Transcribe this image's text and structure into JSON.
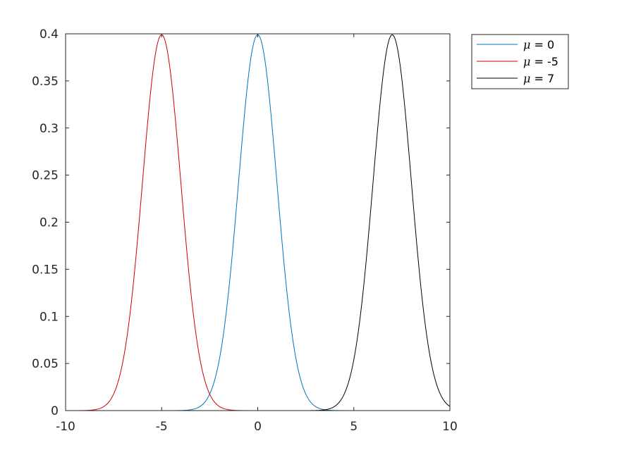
{
  "chart_data": {
    "type": "line",
    "title": "",
    "xlabel": "",
    "ylabel": "",
    "xlim": [
      -10,
      10
    ],
    "ylim": [
      0,
      0.4
    ],
    "xticks": [
      -10,
      -5,
      0,
      5,
      10
    ],
    "xtick_labels": [
      "-10",
      "-5",
      "0",
      "5",
      "10"
    ],
    "yticks": [
      0,
      0.05,
      0.1,
      0.15,
      0.2,
      0.25,
      0.3,
      0.35,
      0.4
    ],
    "ytick_labels": [
      "0",
      "0.05",
      "0.1",
      "0.15",
      "0.2",
      "0.25",
      "0.3",
      "0.35",
      "0.4"
    ],
    "grid": false,
    "box": true,
    "legend_position": "outside-top-right",
    "x": [
      -10,
      -9,
      -8.5,
      -8,
      -7.5,
      -7,
      -6.5,
      -6,
      -5.5,
      -5,
      -4.5,
      -4,
      -3.5,
      -3,
      -2.5,
      -2,
      -1.5,
      -1,
      -0.5,
      0,
      0.5,
      1,
      1.5,
      2,
      2.5,
      3,
      3.5,
      4,
      4.5,
      5,
      5.5,
      6,
      6.5,
      7,
      7.5,
      8,
      8.5,
      9,
      9.5,
      10
    ],
    "series": [
      {
        "name_prefix": "μ",
        "name_suffix": " = 0",
        "color": "#0072BD",
        "mu": 0,
        "sigma": 1,
        "values": [
          0,
          0,
          0,
          0,
          0,
          0,
          0,
          0,
          0,
          0,
          0.0,
          0.0001,
          0.0009,
          0.0044,
          0.0175,
          0.054,
          0.1295,
          0.242,
          0.3521,
          0.3989,
          0.3521,
          0.242,
          0.1295,
          0.054,
          0.0175,
          0.0044,
          0.0009,
          0.0001,
          0.0,
          0,
          0,
          0,
          0,
          0,
          0,
          0,
          0,
          0,
          0,
          0
        ]
      },
      {
        "name_prefix": "μ",
        "name_suffix": " = -5",
        "color": "#D00000",
        "mu": -5,
        "sigma": 1,
        "values": [
          0.0,
          0.0001,
          0.0009,
          0.0044,
          0.0175,
          0.054,
          0.1295,
          0.242,
          0.3521,
          0.3989,
          0.3521,
          0.242,
          0.1295,
          0.054,
          0.0175,
          0.0044,
          0.0009,
          0.0001,
          0.0,
          0,
          0,
          0,
          0,
          0,
          0,
          0,
          0,
          0,
          0,
          0,
          0,
          0,
          0,
          0,
          0,
          0,
          0,
          0,
          0,
          0
        ]
      },
      {
        "name_prefix": "μ",
        "name_suffix": " = 7",
        "color": "#000000",
        "mu": 7,
        "sigma": 1,
        "values": [
          0,
          0,
          0,
          0,
          0,
          0,
          0,
          0,
          0,
          0,
          0,
          0,
          0,
          0,
          0,
          0,
          0,
          0,
          0,
          0,
          0,
          0,
          0,
          0,
          0,
          0,
          0.0009,
          0.0044,
          0.0175,
          0.054,
          0.1295,
          0.242,
          0.3521,
          0.3989,
          0.3521,
          0.242,
          0.1295,
          0.054,
          0.0175,
          0.0044
        ]
      }
    ]
  }
}
